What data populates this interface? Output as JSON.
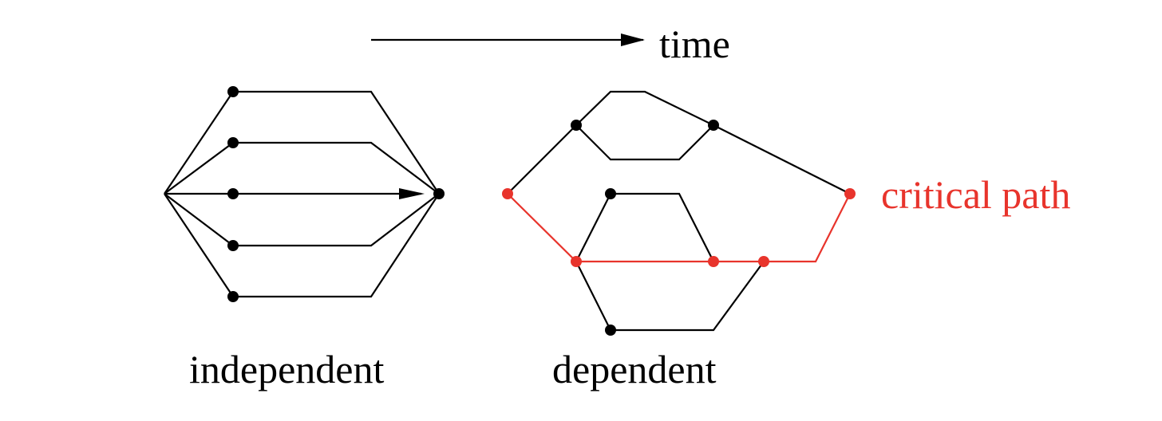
{
  "labels": {
    "time": "time",
    "critical_path": "critical path",
    "independent": "independent",
    "dependent": "dependent"
  },
  "colors": {
    "ink": "#000000",
    "critical": "#e8342c",
    "background": "#ffffff"
  }
}
